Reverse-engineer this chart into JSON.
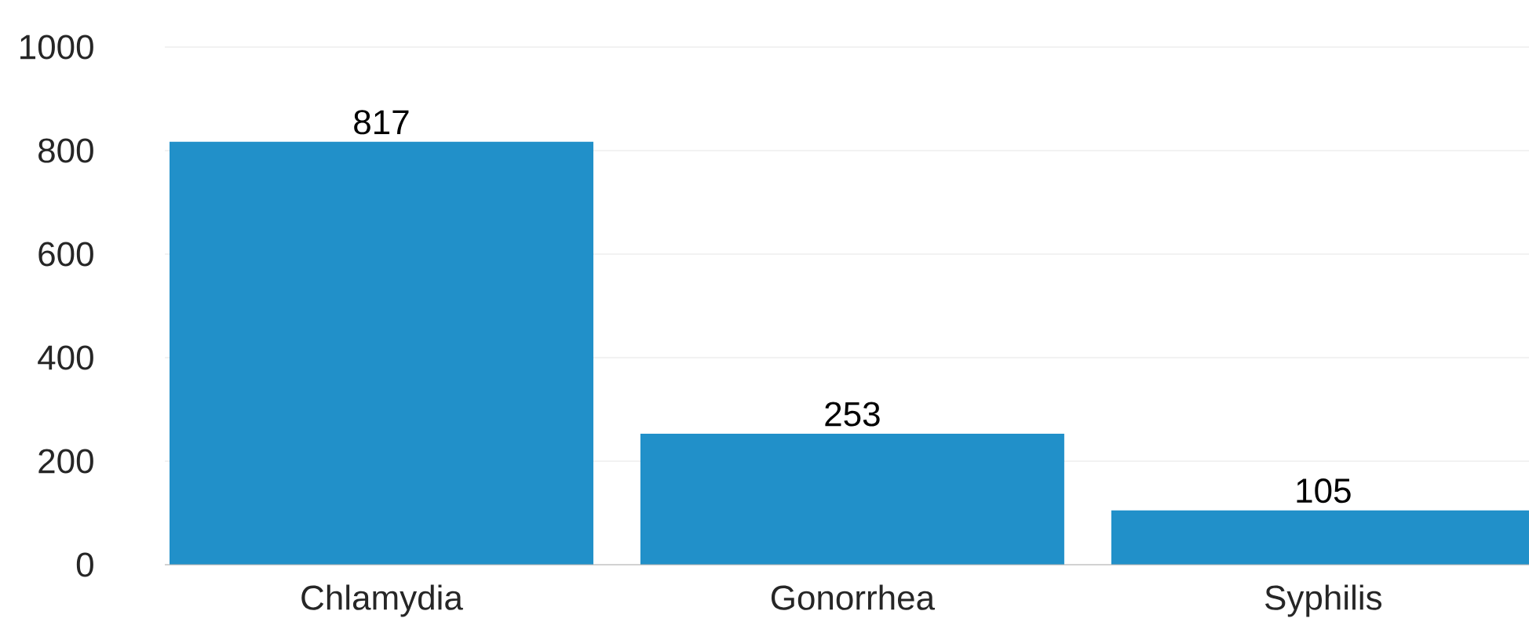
{
  "chart_data": {
    "type": "bar",
    "categories": [
      "Chlamydia",
      "Gonorrhea",
      "Syphilis"
    ],
    "values": [
      817,
      253,
      105
    ],
    "color": "#2190c9",
    "ylim": [
      0,
      1000
    ],
    "yticks": [
      0,
      200,
      400,
      600,
      800,
      1000
    ],
    "grid": "y",
    "data_labels": true
  }
}
